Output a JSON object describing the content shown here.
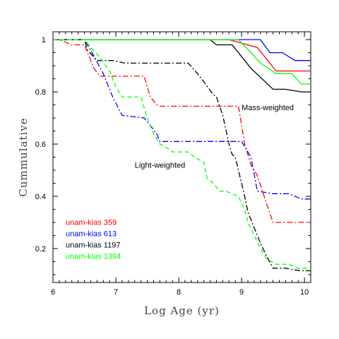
{
  "chart_data": {
    "type": "line",
    "xlabel": "Log Age (yr)",
    "ylabel": "Cummulative",
    "xlim": [
      6,
      10.1
    ],
    "ylim": [
      0.07,
      1.03
    ],
    "xticks": [
      6,
      7,
      8,
      9,
      10
    ],
    "yticks": [
      0.2,
      0.4,
      0.6,
      0.8,
      1
    ],
    "ytick_labels": [
      "0.2",
      "0.4",
      "0.6",
      "0.8",
      "1"
    ],
    "annotations": [
      {
        "text": "Mass-weighted",
        "x": 9.0,
        "y": 0.73
      },
      {
        "text": "Light-weighted",
        "x": 7.3,
        "y": 0.51
      }
    ],
    "legend_position": "bottom-left",
    "series": [
      {
        "name": "unam-kias 359",
        "color": "#ff0000",
        "weighting": "mass",
        "style": "solid",
        "x": [
          6.0,
          8.8,
          9.25,
          9.55,
          10.1
        ],
        "y": [
          1.0,
          1.0,
          0.97,
          0.88,
          0.88
        ]
      },
      {
        "name": "unam-kias 613",
        "color": "#0000ff",
        "weighting": "mass",
        "style": "solid",
        "x": [
          6.0,
          9.3,
          9.45,
          9.65,
          9.85,
          10.1
        ],
        "y": [
          1.0,
          1.0,
          0.95,
          0.95,
          0.92,
          0.92
        ]
      },
      {
        "name": "unam-kias 1197",
        "color": "#000000",
        "weighting": "mass",
        "style": "solid",
        "x": [
          6.0,
          8.5,
          8.6,
          8.85,
          9.15,
          9.5,
          9.7,
          9.95,
          10.1
        ],
        "y": [
          1.0,
          1.0,
          0.98,
          0.98,
          0.89,
          0.81,
          0.81,
          0.8,
          0.8
        ]
      },
      {
        "name": "unam-kias 1394",
        "color": "#00ff00",
        "weighting": "mass",
        "style": "solid",
        "x": [
          6.0,
          8.95,
          9.15,
          9.3,
          9.55,
          9.8,
          9.95,
          10.1
        ],
        "y": [
          1.0,
          1.0,
          0.95,
          0.91,
          0.87,
          0.87,
          0.83,
          0.83
        ]
      },
      {
        "name": "unam-kias 359",
        "color": "#ff0000",
        "weighting": "light",
        "style": "dashdot",
        "x": [
          6.0,
          6.1,
          6.3,
          6.5,
          6.55,
          6.65,
          6.75,
          6.85,
          7.45,
          7.5,
          7.55,
          7.65,
          7.7,
          8.95,
          9.05,
          9.15,
          9.25,
          9.4,
          9.5,
          10.1
        ],
        "y": [
          1.0,
          1.0,
          0.98,
          0.98,
          0.95,
          0.89,
          0.86,
          0.86,
          0.86,
          0.82,
          0.78,
          0.75,
          0.745,
          0.745,
          0.6,
          0.52,
          0.48,
          0.37,
          0.3,
          0.3
        ]
      },
      {
        "name": "unam-kias 613",
        "color": "#0000ff",
        "weighting": "light",
        "style": "dashdot",
        "x": [
          6.0,
          6.5,
          6.6,
          6.8,
          6.95,
          7.1,
          7.45,
          7.65,
          7.7,
          9.0,
          9.15,
          9.25,
          9.5,
          9.75,
          9.95,
          10.1
        ],
        "y": [
          1.0,
          1.0,
          0.96,
          0.87,
          0.78,
          0.71,
          0.7,
          0.64,
          0.61,
          0.61,
          0.55,
          0.42,
          0.41,
          0.41,
          0.39,
          0.39
        ]
      },
      {
        "name": "unam-kias 1197",
        "color": "#000000",
        "weighting": "light",
        "style": "dashdot",
        "x": [
          6.0,
          6.5,
          6.55,
          6.7,
          6.95,
          7.15,
          8.15,
          8.3,
          8.55,
          8.6,
          8.7,
          8.8,
          8.85,
          8.9,
          8.95,
          9.0,
          9.05,
          9.1,
          9.2,
          9.3,
          9.4,
          9.5,
          9.7,
          9.8,
          9.95,
          10.1
        ],
        "y": [
          1.0,
          1.0,
          0.96,
          0.92,
          0.92,
          0.91,
          0.91,
          0.87,
          0.79,
          0.78,
          0.71,
          0.6,
          0.56,
          0.55,
          0.5,
          0.45,
          0.4,
          0.34,
          0.28,
          0.22,
          0.17,
          0.125,
          0.125,
          0.12,
          0.115,
          0.115
        ]
      },
      {
        "name": "unam-kias 1394",
        "color": "#00ff00",
        "weighting": "light",
        "style": "dashed",
        "x": [
          6.0,
          6.5,
          6.6,
          6.75,
          6.9,
          7.0,
          7.1,
          7.4,
          7.5,
          7.6,
          7.7,
          7.85,
          7.9,
          8.15,
          8.25,
          8.4,
          8.45,
          8.55,
          8.65,
          8.75,
          8.95,
          9.05,
          9.1,
          9.2,
          9.3,
          9.4,
          9.55,
          9.75,
          9.9,
          10.1
        ],
        "y": [
          1.0,
          1.0,
          0.97,
          0.93,
          0.88,
          0.82,
          0.78,
          0.78,
          0.7,
          0.64,
          0.6,
          0.58,
          0.57,
          0.57,
          0.55,
          0.53,
          0.47,
          0.45,
          0.42,
          0.42,
          0.4,
          0.35,
          0.3,
          0.25,
          0.2,
          0.16,
          0.14,
          0.14,
          0.125,
          0.125
        ]
      }
    ],
    "legend": [
      {
        "label": "unam-kias 359",
        "color": "#ff0000"
      },
      {
        "label": "unam-kias 613",
        "color": "#0000ff"
      },
      {
        "label": "unam-kias 1197",
        "color": "#000000"
      },
      {
        "label": "unam-kias 1394",
        "color": "#00ff00"
      }
    ]
  }
}
